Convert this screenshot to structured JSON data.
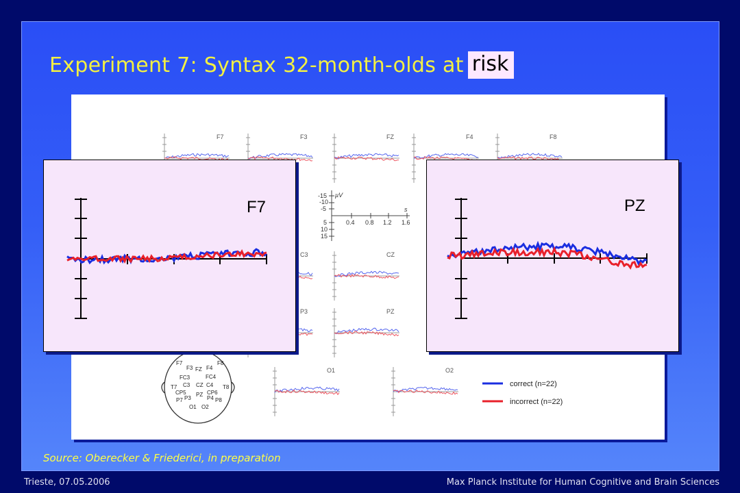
{
  "slide": {
    "title": "Experiment 7: Syntax 32-month-olds at",
    "title_highlight": "risk",
    "source": "Source: Oberecker & Friederici, in preparation",
    "footer_left": "Trieste, 07.05.2006",
    "footer_right": "Max Planck Institute for Human Cognitive and Brain Sciences"
  },
  "figure": {
    "electrodes": [
      "F7",
      "F3",
      "FZ",
      "F4",
      "F8",
      "C3",
      "CZ",
      "P3",
      "PZ",
      "O1",
      "O2"
    ],
    "scale": {
      "unit": "µV",
      "time_unit": "s",
      "y_ticks": [
        "-15",
        "-10",
        "-5",
        "5",
        "10",
        "15"
      ],
      "x_ticks": [
        "0.4",
        "0.8",
        "1.2",
        "1.6"
      ]
    },
    "legend": [
      {
        "label": "correct (n=22)",
        "color": "#1a2ee0"
      },
      {
        "label": "incorrect (n=22)",
        "color": "#e8202a"
      }
    ],
    "head_labels": [
      "F7",
      "F3",
      "FZ",
      "F4",
      "F8",
      "FC3",
      "FC4",
      "T7",
      "C3",
      "CZ",
      "C4",
      "T8",
      "CP5",
      "CP6",
      "P7",
      "P3",
      "PZ",
      "P4",
      "P8",
      "O1",
      "O2"
    ]
  },
  "zooms": {
    "left_label": "F7",
    "right_label": "PZ"
  },
  "colors": {
    "background": "#000a6a",
    "slide": "#345ef7",
    "title": "#f3f042",
    "correct": "#1a2ee0",
    "incorrect": "#e8202a",
    "zoom_bg": "#f7e6fb"
  }
}
